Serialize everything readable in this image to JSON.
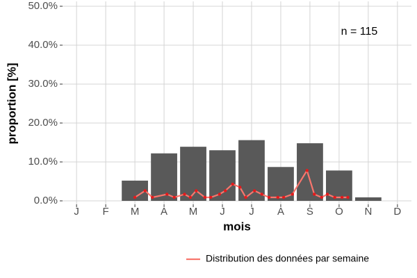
{
  "chart_data": {
    "type": "bar",
    "x_label": "mois",
    "y_label": "proportion [%]",
    "annotation": "n = 115",
    "categories": [
      "J",
      "F",
      "M",
      "A",
      "M",
      "J",
      "J",
      "A",
      "S",
      "O",
      "N",
      "D"
    ],
    "values": [
      0,
      0,
      5.2,
      12.2,
      13.9,
      13.0,
      15.6,
      8.7,
      14.8,
      7.8,
      0.9,
      0
    ],
    "color": "#595959",
    "ylim": [
      0,
      50
    ],
    "yticks": [
      {
        "value": 0,
        "label": "0.0%"
      },
      {
        "value": 10,
        "label": "10.0%"
      },
      {
        "value": 20,
        "label": "20.0%"
      },
      {
        "value": 30,
        "label": "30.0%"
      },
      {
        "value": 40,
        "label": "40.0%"
      },
      {
        "value": 50,
        "label": "50.0%"
      }
    ],
    "grid": true,
    "line": {
      "type": "line",
      "name": "Distribution des données par semaine",
      "color": "#f8766d",
      "point_color": "#e41a1c",
      "x": [
        3.0,
        3.35,
        3.6,
        4.1,
        4.35,
        4.7,
        4.9,
        5.1,
        5.4,
        5.6,
        5.9,
        6.1,
        6.35,
        6.6,
        6.8,
        7.1,
        7.35,
        7.6,
        7.9,
        8.1,
        8.4,
        8.9,
        9.15,
        9.4,
        9.6,
        9.85,
        10.1,
        10.3
      ],
      "values": [
        0.9,
        2.6,
        0.9,
        1.7,
        0.9,
        1.7,
        0.9,
        2.6,
        0.9,
        0.9,
        1.7,
        2.6,
        4.3,
        3.5,
        0.9,
        2.6,
        1.7,
        0.9,
        0.9,
        0.9,
        1.7,
        7.8,
        1.7,
        0.9,
        1.7,
        0.9,
        0.9,
        0.9
      ]
    },
    "legend_position": "bottom-right"
  }
}
